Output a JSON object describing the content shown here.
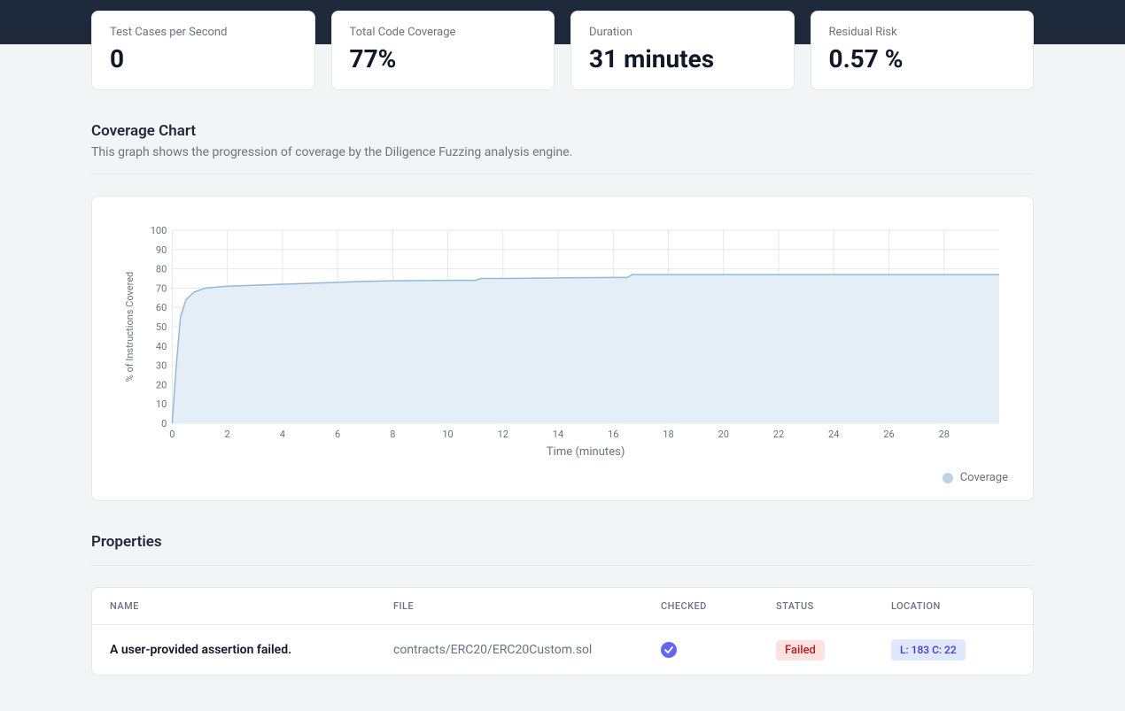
{
  "metrics": [
    {
      "label": "Test Cases per Second",
      "value": "0"
    },
    {
      "label": "Total Code Coverage",
      "value": "77%"
    },
    {
      "label": "Duration",
      "value": "31 minutes"
    },
    {
      "label": "Residual Risk",
      "value": "0.57 %"
    }
  ],
  "coverage_section": {
    "title": "Coverage Chart",
    "subtitle": "This graph shows the progression of coverage by the Diligence Fuzzing analysis engine."
  },
  "coverage_chart": {
    "type": "area",
    "x_label": "Time (minutes)",
    "y_label": "% of Instructions Covered",
    "xlim": [
      0,
      30
    ],
    "ylim": [
      0,
      100
    ],
    "x_ticks": [
      0,
      2,
      4,
      6,
      8,
      10,
      12,
      14,
      16,
      18,
      20,
      22,
      24,
      26,
      28
    ],
    "y_ticks": [
      0,
      10,
      20,
      30,
      40,
      50,
      60,
      70,
      80,
      90,
      100
    ],
    "line_color": "#94b9d8",
    "fill_color": "#e4eef7",
    "grid_color": "#e5e7eb",
    "background_color": "#ffffff",
    "legend_label": "Coverage",
    "legend_dot_color": "#bcd3e6",
    "series": [
      [
        0.0,
        0
      ],
      [
        0.15,
        30
      ],
      [
        0.3,
        55
      ],
      [
        0.5,
        64
      ],
      [
        0.8,
        68
      ],
      [
        1.2,
        70
      ],
      [
        2.0,
        71
      ],
      [
        3.0,
        71.5
      ],
      [
        4.0,
        72
      ],
      [
        5.0,
        72.5
      ],
      [
        6.0,
        73
      ],
      [
        7.0,
        73.5
      ],
      [
        8.0,
        73.8
      ],
      [
        10.0,
        74
      ],
      [
        11.0,
        74
      ],
      [
        11.2,
        75
      ],
      [
        12.0,
        75
      ],
      [
        14.0,
        75.3
      ],
      [
        16.0,
        75.5
      ],
      [
        16.5,
        75.5
      ],
      [
        16.7,
        77
      ],
      [
        18.0,
        77
      ],
      [
        20.0,
        77
      ],
      [
        24.0,
        77
      ],
      [
        28.0,
        77
      ],
      [
        30.0,
        77
      ]
    ]
  },
  "properties_section": {
    "title": "Properties"
  },
  "properties_table": {
    "columns": [
      "NAME",
      "FILE",
      "CHECKED",
      "STATUS",
      "LOCATION"
    ],
    "rows": [
      {
        "name": "A user-provided assertion failed.",
        "file": "contracts/ERC20/ERC20Custom.sol",
        "checked": true,
        "status": "Failed",
        "status_color_bg": "#fee2e2",
        "status_color_text": "#b91c1c",
        "location": "L: 183 C: 22"
      }
    ]
  }
}
